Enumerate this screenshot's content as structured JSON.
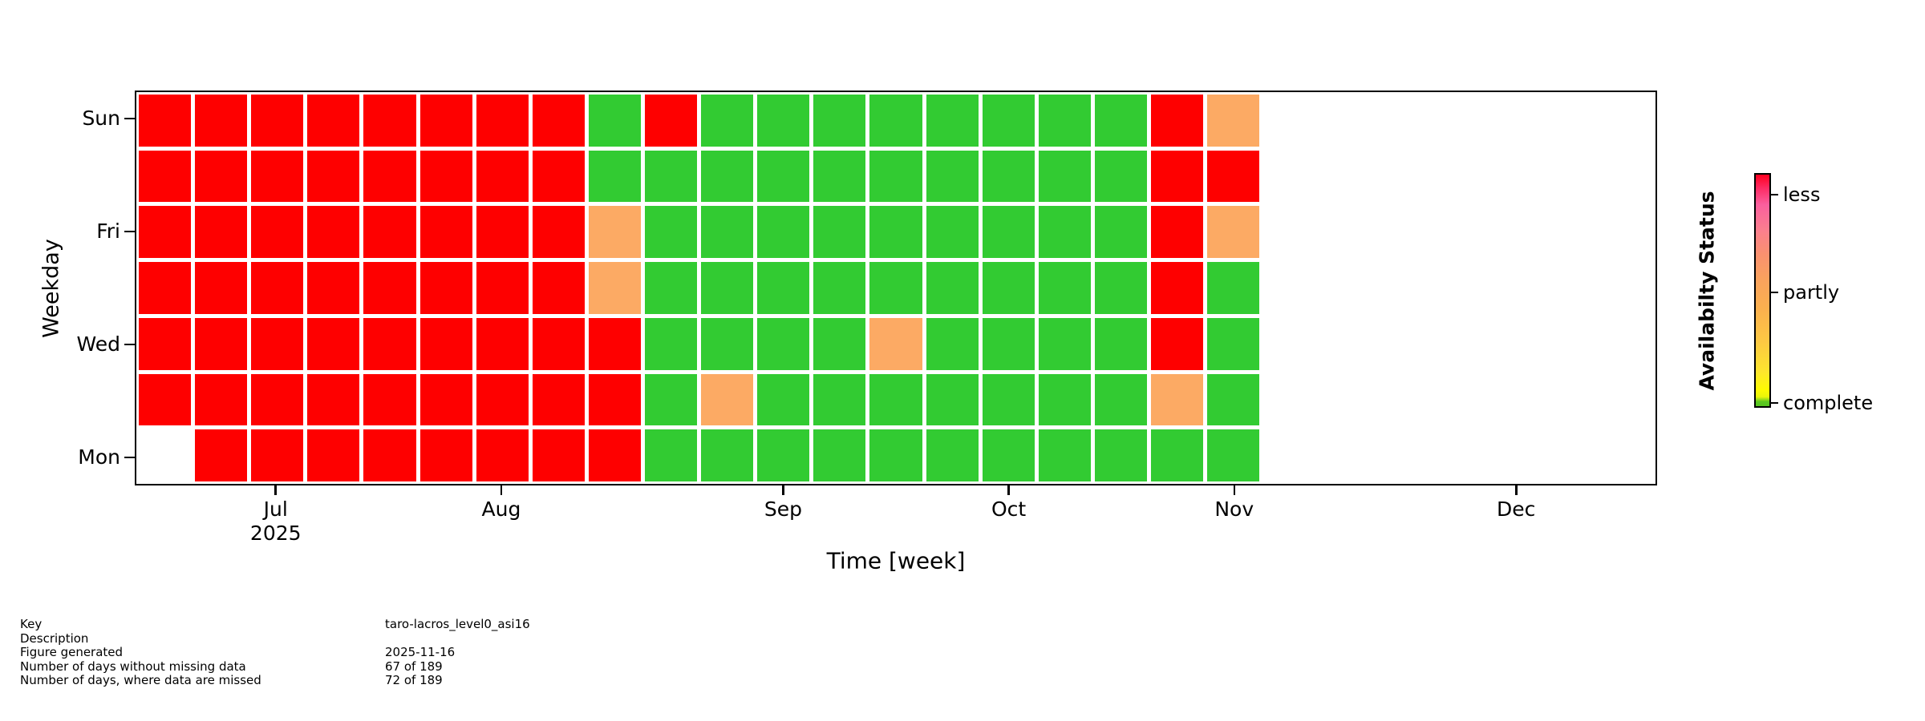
{
  "figure": {
    "background": "#ffffff"
  },
  "chart_data": {
    "type": "heatmap",
    "title": "",
    "xlabel": "Time [week]",
    "ylabel": "Weekday",
    "rows_top_to_bottom": [
      "Sun",
      "Sat",
      "Fri",
      "Thu",
      "Wed",
      "Tue",
      "Mon"
    ],
    "y_tick_labels": [
      "Sun",
      "Fri",
      "Wed",
      "Mon"
    ],
    "y_tick_row_index": [
      0,
      2,
      4,
      6
    ],
    "n_weeks": 27,
    "x_ticks": [
      {
        "label": "Jul",
        "week": 3,
        "year": "2025"
      },
      {
        "label": "Aug",
        "week": 7
      },
      {
        "label": "Sep",
        "week": 12
      },
      {
        "label": "Oct",
        "week": 16
      },
      {
        "label": "Nov",
        "week": 20
      },
      {
        "label": "Dec",
        "week": 25
      }
    ],
    "cell_states": {
      "C": "complete",
      "P": "partly",
      "L": "less",
      "N": "no data"
    },
    "cell_colors": {
      "C": "#32cb32",
      "P": "#fcaa64",
      "L": "#fe0000",
      "N": "#ffffff"
    },
    "weeks_sun_to_mon": [
      "LLLLLLN",
      "LLLLLLL",
      "LLLLLLL",
      "LLLLLLL",
      "LLLLLLL",
      "LLLLLLL",
      "LLLLLLL",
      "LLLLLLL",
      "CCPPLLL",
      "LCCCCCC",
      "CCCCCPC",
      "CCCCCCC",
      "CCCCCCC",
      "CCCCPCC",
      "CCCCCCC",
      "CCCCCCC",
      "CCCCCCC",
      "CCCCCCC",
      "LLLLLPC",
      "PLPCCCC",
      "NNNNNNN",
      "NNNNNNN",
      "NNNNNNN",
      "NNNNNNN",
      "NNNNNNN",
      "NNNNNNN",
      "NNNNNNN"
    ],
    "colorbar": {
      "title": "Availabilty Status",
      "tick_labels": [
        "less",
        "partly",
        "complete"
      ],
      "tick_positions_pct": [
        9.3,
        51.5,
        99.3
      ],
      "gradient_top_to_bottom": [
        {
          "color": "#ff0020",
          "pos": 0
        },
        {
          "color": "#fd2d66",
          "pos": 6
        },
        {
          "color": "#fb5f9e",
          "pos": 13
        },
        {
          "color": "#fb7f8e",
          "pos": 24
        },
        {
          "color": "#fa9070",
          "pos": 34
        },
        {
          "color": "#faa35c",
          "pos": 46
        },
        {
          "color": "#fbb04e",
          "pos": 58
        },
        {
          "color": "#fcc843",
          "pos": 72
        },
        {
          "color": "#fde52e",
          "pos": 85
        },
        {
          "color": "#fdfb02",
          "pos": 93
        },
        {
          "color": "#e9f50a",
          "pos": 96
        },
        {
          "color": "#5ec922",
          "pos": 98
        },
        {
          "color": "#55c41f",
          "pos": 100
        }
      ]
    }
  },
  "metadata": {
    "rows": [
      {
        "label": "Key",
        "value": "taro-lacros_level0_asi16"
      },
      {
        "label": "Description",
        "value": ""
      },
      {
        "label": "Figure generated",
        "value": "2025-11-16"
      },
      {
        "label": "Number of days without missing data",
        "value": "67 of 189"
      },
      {
        "label": "Number of days, where data are missed",
        "value": "72 of 189"
      }
    ]
  }
}
